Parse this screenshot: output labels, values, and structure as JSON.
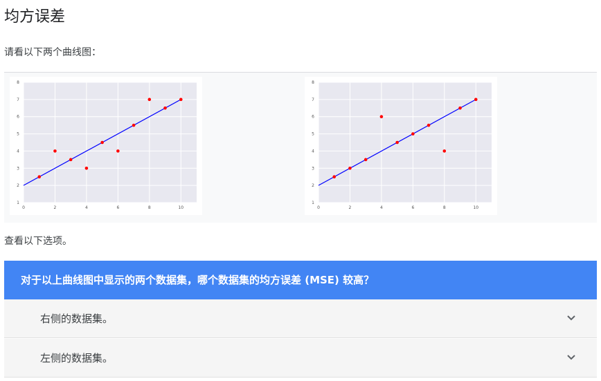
{
  "page": {
    "title": "均方误差",
    "intro": "请看以下两个曲线图：",
    "options_intro": "查看以下选项。"
  },
  "question": {
    "text": "对于以上曲线图中显示的两个数据集，哪个数据集的均方误差 (MSE) 较高？",
    "options": [
      {
        "label": "右侧的数据集。",
        "icon": "chevron-down-icon"
      },
      {
        "label": "左侧的数据集。",
        "icon": "chevron-down-icon"
      }
    ]
  },
  "colors": {
    "question_bg": "#4285f4",
    "option_bg": "#f5f5f5",
    "line": "#0000ff",
    "point": "#ff0000",
    "plot_bg": "#e8e8f0"
  },
  "chart_data": [
    {
      "type": "scatter",
      "title": "",
      "xlabel": "",
      "ylabel": "",
      "xlim": [
        0,
        11
      ],
      "ylim": [
        1,
        8
      ],
      "x_ticks": [
        0,
        2,
        4,
        6,
        8,
        10
      ],
      "y_ticks": [
        1,
        2,
        3,
        4,
        5,
        6,
        7,
        8
      ],
      "grid": true,
      "points": {
        "x": [
          1,
          2,
          3,
          4,
          5,
          6,
          7,
          8,
          9,
          10
        ],
        "y": [
          2.5,
          4,
          3.5,
          3,
          4.5,
          4,
          5.5,
          7,
          6.5,
          7
        ]
      },
      "fit_line": {
        "x": [
          0,
          10
        ],
        "y": [
          2,
          7
        ]
      }
    },
    {
      "type": "scatter",
      "title": "",
      "xlabel": "",
      "ylabel": "",
      "xlim": [
        0,
        11
      ],
      "ylim": [
        1,
        8
      ],
      "x_ticks": [
        0,
        2,
        4,
        6,
        8,
        10
      ],
      "y_ticks": [
        1,
        2,
        3,
        4,
        5,
        6,
        7,
        8
      ],
      "grid": true,
      "points": {
        "x": [
          1,
          2,
          3,
          4,
          5,
          6,
          7,
          8,
          9,
          10
        ],
        "y": [
          2.5,
          3,
          3.5,
          6,
          4.5,
          5,
          5.5,
          4,
          6.5,
          7
        ]
      },
      "fit_line": {
        "x": [
          0,
          10
        ],
        "y": [
          2,
          7
        ]
      }
    }
  ]
}
